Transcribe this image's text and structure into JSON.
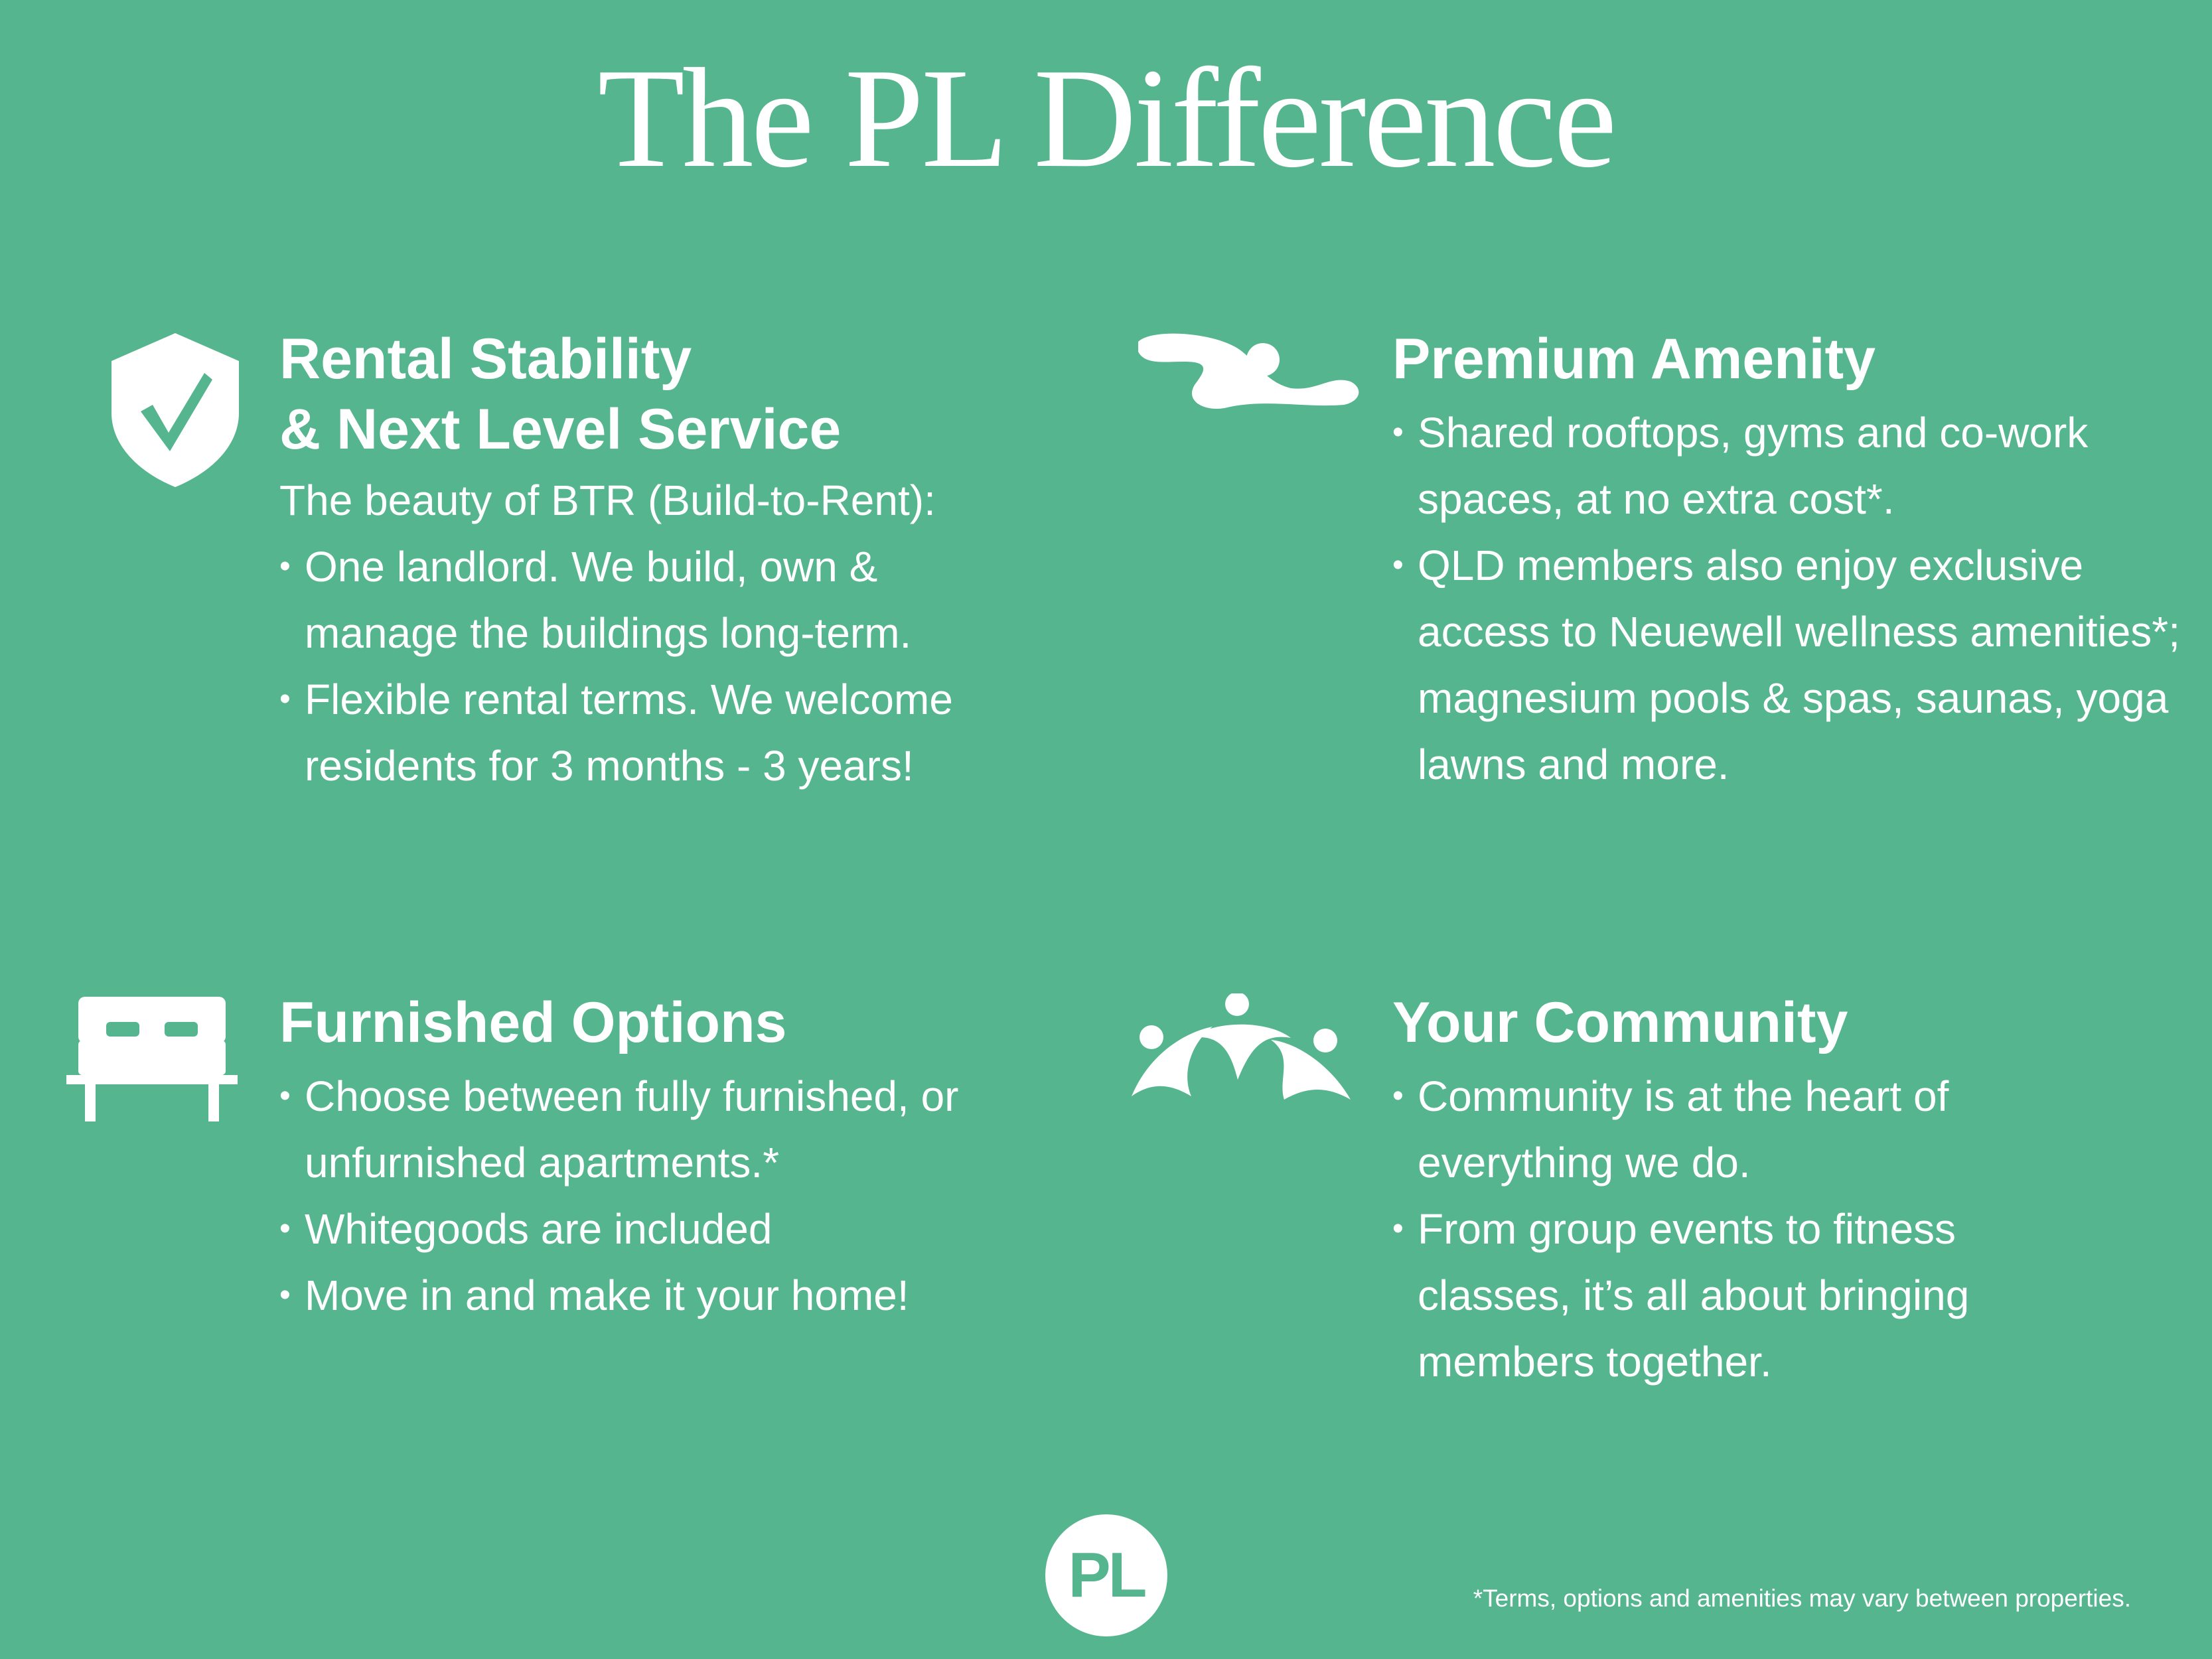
{
  "title": "The PL Difference",
  "colors": {
    "background": "#55b58f",
    "foreground": "#ffffff"
  },
  "sections": [
    {
      "icon": "shield-check-icon",
      "heading_lines": [
        "Rental Stability",
        "& Next Level Service"
      ],
      "intro": "The beauty of BTR (Build-to-Rent):",
      "bullets": [
        "One landlord. We build, own & manage the buildings long-term.",
        "Flexible rental terms. We welcome residents for 3 months - 3 years!"
      ]
    },
    {
      "icon": "swimmer-icon",
      "heading_lines": [
        "Premium Amenity"
      ],
      "bullets": [
        "Shared rooftops, gyms and co-work spaces, at no extra cost*.",
        "QLD members also enjoy exclusive access to Neuewell wellness amenities*; magnesium pools & spas, saunas, yoga lawns and more."
      ]
    },
    {
      "icon": "bed-icon",
      "heading_lines": [
        "Furnished Options"
      ],
      "bullets": [
        "Choose between fully furnished, or unfurnished apartments.*",
        "Whitegoods are included",
        "Move in and make it your home!"
      ]
    },
    {
      "icon": "community-icon",
      "heading_lines": [
        "Your Community"
      ],
      "bullets": [
        "Community is at the heart of everything we do.",
        "From group events to fitness classes, it’s all about bringing members together."
      ]
    }
  ],
  "logo": "PL",
  "footnote": "*Terms, options and amenities may vary between properties."
}
